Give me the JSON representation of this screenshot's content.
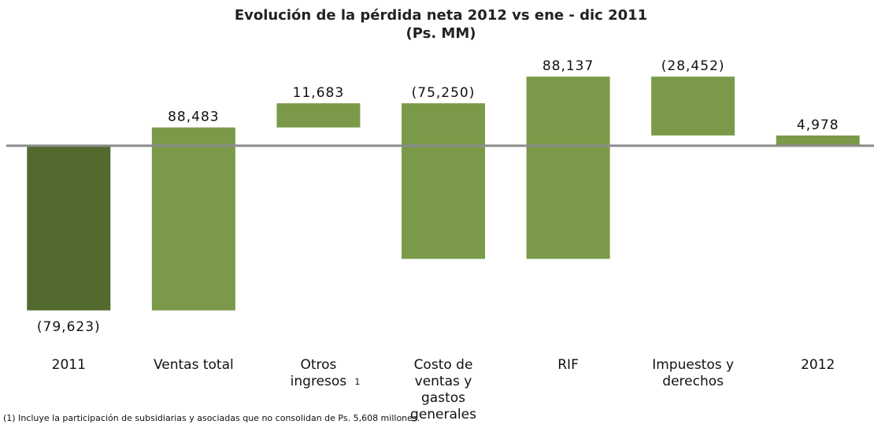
{
  "chart_data": {
    "type": "waterfall",
    "title": "Evolución de la pérdida neta 2012 vs ene - dic 2011",
    "subtitle": "(Ps. MM)",
    "categories": [
      "2011",
      "Ventas total",
      "Otros ingresos",
      "Costo de ventas y gastos generales",
      "RIF",
      "Impuestos y derechos",
      "2012"
    ],
    "values": [
      -79623,
      88483,
      11683,
      -75250,
      88137,
      -28452,
      4978
    ],
    "value_labels": [
      "(79,623)",
      "88,483",
      "11,683",
      "(75,250)",
      "88,137",
      "(28,452)",
      "4,978"
    ],
    "is_total": [
      true,
      false,
      false,
      false,
      false,
      false,
      true
    ],
    "colors": [
      "#536a2e",
      "#7a9a49",
      "#7a9a49",
      "#7a9a49",
      "#7a9a49",
      "#7a9a49",
      "#7a9a49"
    ],
    "ylim": [
      -90000,
      40000
    ],
    "category_note": {
      "index": 2,
      "text": "1"
    },
    "footnote": "(1) Incluye la participación de subsidiarias y asociadas que no consolidan de Ps. 5,608 millones."
  }
}
